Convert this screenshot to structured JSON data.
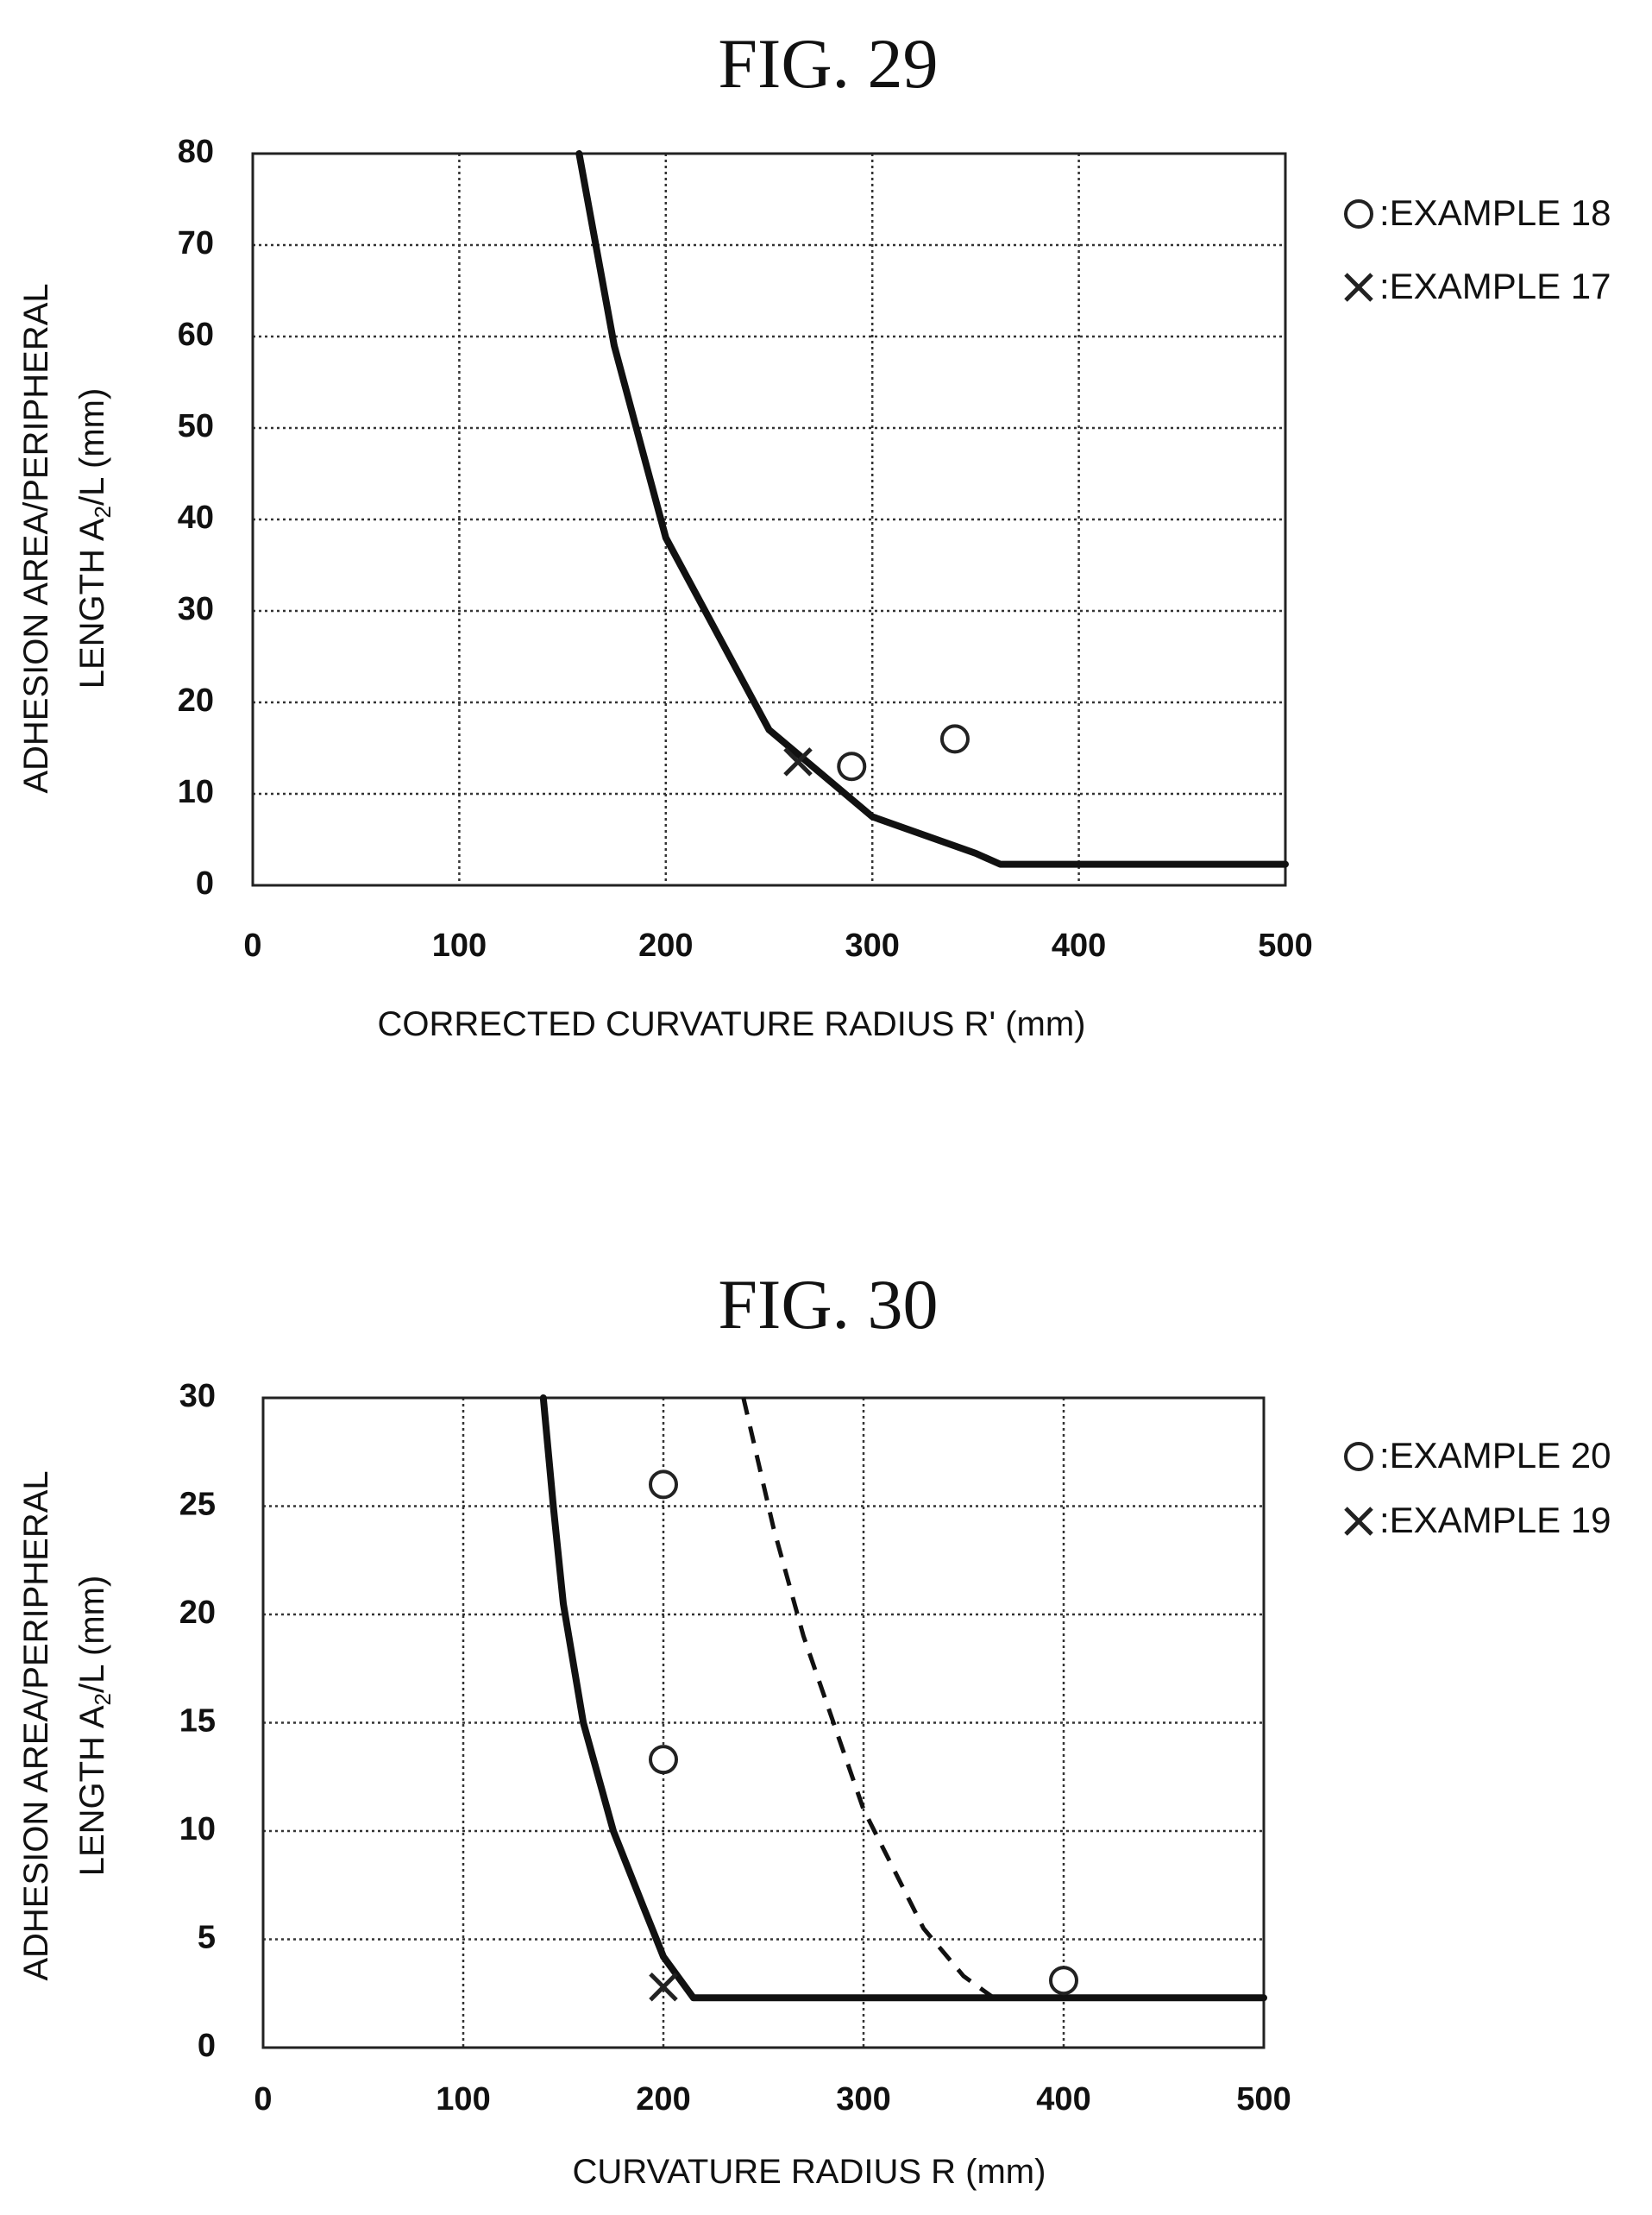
{
  "chart_data": [
    {
      "type": "line",
      "title": "FIG. 29",
      "xlabel": "CORRECTED  CURVATURE  RADIUS  R' (mm)",
      "ylabel_line1": "ADHESION AREA/PERIPHERAL",
      "ylabel_line2_pre": "LENGTH A",
      "ylabel_line2_sub": "2",
      "ylabel_line2_post": "/L (mm)",
      "xlim": [
        0,
        500
      ],
      "ylim": [
        0,
        80
      ],
      "xticks": [
        0,
        100,
        200,
        300,
        400,
        500
      ],
      "yticks": [
        0,
        10,
        20,
        30,
        40,
        50,
        60,
        70,
        80
      ],
      "grid": true,
      "legend_position": "top-right",
      "curves": [
        {
          "style": "solid",
          "x": [
            158,
            175,
            200,
            250,
            300,
            350,
            362,
            500
          ],
          "y": [
            80,
            59,
            38,
            17,
            7.5,
            3.5,
            2.3,
            2.3
          ]
        }
      ],
      "series": [
        {
          "name": "EXAMPLE 18",
          "marker": "circle",
          "points": [
            [
              290,
              13
            ],
            [
              340,
              16
            ]
          ]
        },
        {
          "name": "EXAMPLE 17",
          "marker": "x",
          "points": [
            [
              264,
              13.5
            ]
          ]
        }
      ]
    },
    {
      "type": "line",
      "title": "FIG. 30",
      "xlabel": "CURVATURE RADIUS R (mm)",
      "ylabel_line1": "ADHESION AREA/PERIPHERAL",
      "ylabel_line2_pre": "LENGTH A",
      "ylabel_line2_sub": "2",
      "ylabel_line2_post": "/L (mm)",
      "xlim": [
        0,
        500
      ],
      "ylim": [
        0,
        30
      ],
      "xticks": [
        0,
        100,
        200,
        300,
        400,
        500
      ],
      "yticks": [
        0,
        5,
        10,
        15,
        20,
        25,
        30
      ],
      "grid": true,
      "legend_position": "top-right",
      "curves": [
        {
          "style": "solid",
          "x": [
            140,
            145,
            150,
            160,
            175,
            190,
            200,
            215,
            500
          ],
          "y": [
            30,
            25,
            20.5,
            15,
            10,
            6.5,
            4.2,
            2.3,
            2.3
          ]
        },
        {
          "style": "dashed",
          "x": [
            240,
            255,
            270,
            300,
            330,
            350,
            365
          ],
          "y": [
            30,
            24,
            19,
            11,
            5.5,
            3.3,
            2.3
          ]
        }
      ],
      "series": [
        {
          "name": "EXAMPLE 20",
          "marker": "circle",
          "points": [
            [
              200,
              26
            ],
            [
              200,
              13.3
            ],
            [
              400,
              3.1
            ]
          ]
        },
        {
          "name": "EXAMPLE 19",
          "marker": "x",
          "points": [
            [
              200,
              2.8
            ]
          ]
        }
      ]
    }
  ]
}
